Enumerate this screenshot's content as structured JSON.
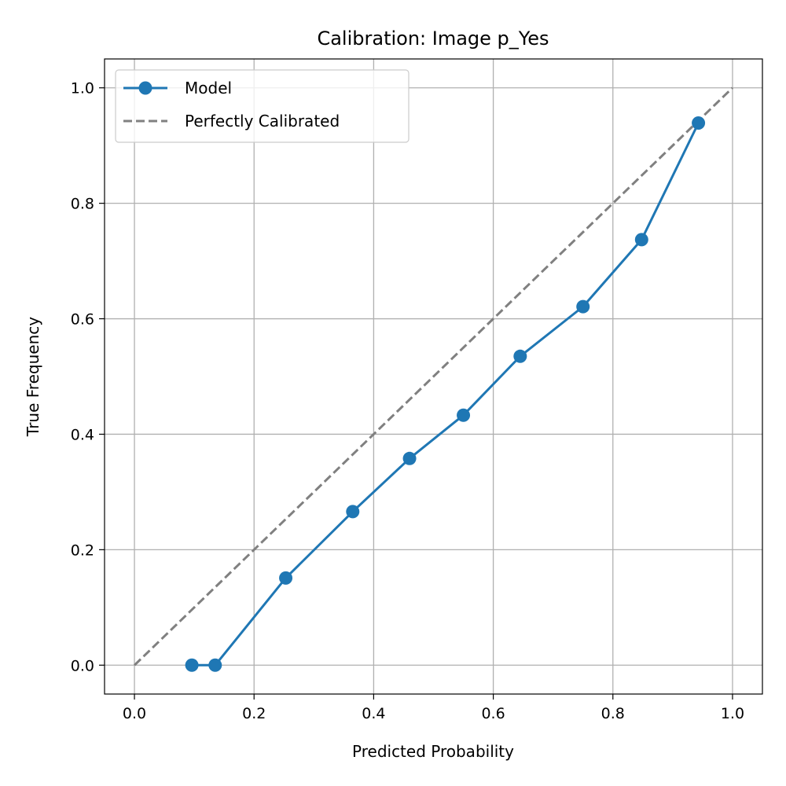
{
  "chart_data": {
    "type": "line",
    "title": "Calibration: Image p_Yes",
    "xlabel": "Predicted Probability",
    "ylabel": "True Frequency",
    "xlim": [
      -0.05,
      1.05
    ],
    "ylim": [
      -0.05,
      1.05
    ],
    "xticks": [
      0.0,
      0.2,
      0.4,
      0.6,
      0.8,
      1.0
    ],
    "yticks": [
      0.0,
      0.2,
      0.4,
      0.6,
      0.8,
      1.0
    ],
    "xtick_labels": [
      "0.0",
      "0.2",
      "0.4",
      "0.6",
      "0.8",
      "1.0"
    ],
    "ytick_labels": [
      "0.0",
      "0.2",
      "0.4",
      "0.6",
      "0.8",
      "1.0"
    ],
    "grid": true,
    "legend_position": "upper-left",
    "series": [
      {
        "name": "Model",
        "style": "solid-line-with-circle-markers",
        "color": "#1f77b4",
        "x": [
          0.096,
          0.135,
          0.253,
          0.365,
          0.46,
          0.55,
          0.645,
          0.75,
          0.848,
          0.943
        ],
        "y": [
          0.0,
          0.0,
          0.151,
          0.266,
          0.358,
          0.433,
          0.535,
          0.621,
          0.737,
          0.939
        ]
      },
      {
        "name": "Perfectly Calibrated",
        "style": "dashed-line",
        "color": "#808080",
        "x": [
          0.0,
          1.0
        ],
        "y": [
          0.0,
          1.0
        ]
      }
    ]
  }
}
